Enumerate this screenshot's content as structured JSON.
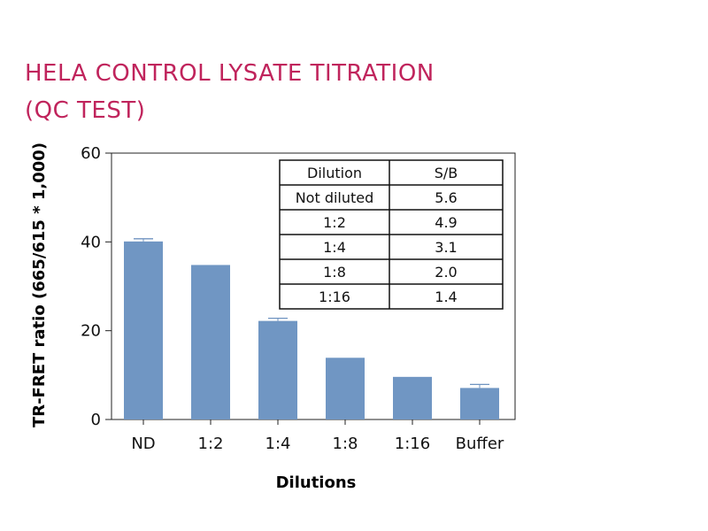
{
  "colors": {
    "title": "#c0245c",
    "bar": "#7096c3",
    "error_bar": "#6f93c0",
    "axis": "#222222",
    "text": "#111111"
  },
  "title_lines": [
    "HELA CONTROL LYSATE TITRATION",
    "(QC TEST)"
  ],
  "chart_data": {
    "type": "bar",
    "title": "HELA CONTROL LYSATE TITRATION (QC TEST)",
    "xlabel": "Dilutions",
    "ylabel": "TR-FRET ratio (665/615 * 1,000)",
    "ylim": [
      0,
      60
    ],
    "yticks": [
      0,
      20,
      40,
      60
    ],
    "grid": false,
    "categories": [
      "ND",
      "1:2",
      "1:4",
      "1:8",
      "1:16",
      "Buffer"
    ],
    "values": [
      40.1,
      34.8,
      22.2,
      13.9,
      9.6,
      7.1
    ],
    "errors": [
      0.6,
      0,
      0.6,
      0,
      0,
      0.8
    ]
  },
  "table": {
    "headers": [
      "Dilution",
      "S/B"
    ],
    "rows": [
      [
        "Not diluted",
        "5.6"
      ],
      [
        "1:2",
        "4.9"
      ],
      [
        "1:4",
        "3.1"
      ],
      [
        "1:8",
        "2.0"
      ],
      [
        "1:16",
        "1.4"
      ]
    ]
  }
}
